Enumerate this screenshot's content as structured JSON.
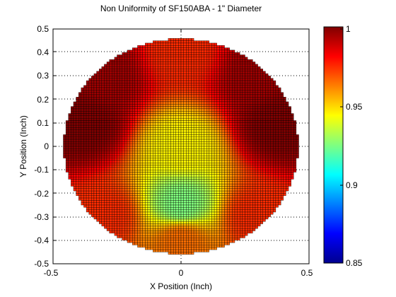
{
  "chart_data": {
    "type": "heatmap",
    "title": "Non Uniformity of SF150ABA - 1\" Diameter",
    "xlabel": "X Position (Inch)",
    "ylabel": "Y Position (Inch)",
    "xlim": [
      -0.5,
      0.5
    ],
    "ylim": [
      -0.5,
      0.5
    ],
    "x_ticks": [
      "-0.5",
      "0",
      "0.5"
    ],
    "y_ticks": [
      "-0.5",
      "-0.4",
      "-0.3",
      "-0.2",
      "-0.1",
      "0",
      "0.1",
      "0.2",
      "0.3",
      "0.4",
      "0.5"
    ],
    "grid": true,
    "aperture_diameter": 1,
    "colorbar": {
      "min": 0.85,
      "max": 1,
      "ticks": [
        "0.85",
        "0.9",
        "0.95",
        "1"
      ],
      "colormap": "jet"
    },
    "value_samples": [
      {
        "x": -0.38,
        "y": 0.1,
        "value": 1.0
      },
      {
        "x": 0.38,
        "y": 0.1,
        "value": 1.0
      },
      {
        "x": -0.3,
        "y": 0.3,
        "value": 0.995
      },
      {
        "x": 0.3,
        "y": 0.3,
        "value": 0.995
      },
      {
        "x": 0.0,
        "y": 0.4,
        "value": 0.975
      },
      {
        "x": 0.0,
        "y": 0.0,
        "value": 0.945
      },
      {
        "x": 0.0,
        "y": -0.25,
        "value": 0.925
      },
      {
        "x": 0.0,
        "y": -0.4,
        "value": 0.965
      },
      {
        "x": -0.3,
        "y": -0.3,
        "value": 0.975
      },
      {
        "x": 0.3,
        "y": -0.3,
        "value": 0.975
      }
    ]
  }
}
